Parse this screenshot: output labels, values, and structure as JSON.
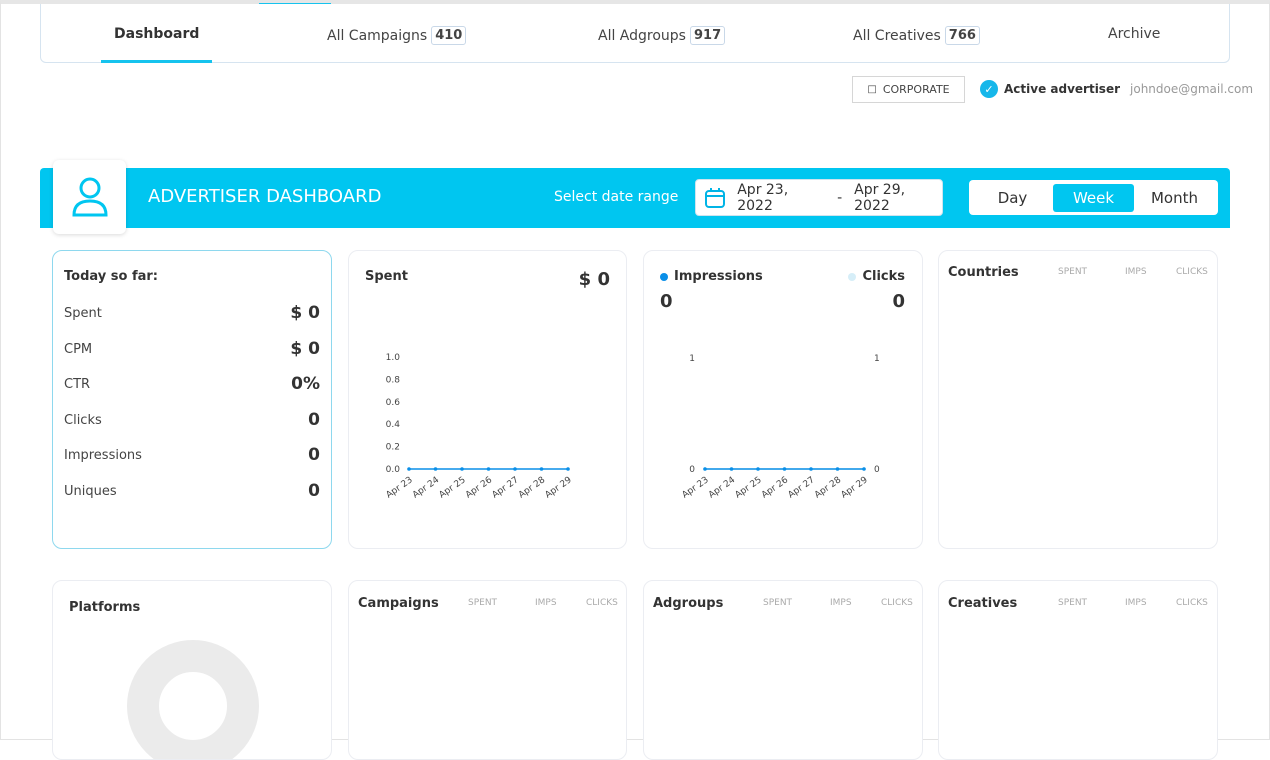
{
  "nav": {
    "tabs": [
      {
        "label": "Dashboard",
        "active": true
      },
      {
        "label": "All Campaigns",
        "count": "410"
      },
      {
        "label": "All Adgroups",
        "count": "917"
      },
      {
        "label": "All Creatives",
        "count": "766"
      },
      {
        "label": "Archive"
      }
    ]
  },
  "account": {
    "corporate_label": "CORPORATE",
    "status": "Active advertiser",
    "email": "johndoe@gmail.com"
  },
  "header": {
    "title": "ADVERTISER DASHBOARD",
    "date_label": "Select date range",
    "date_start": "Apr 23, 2022",
    "date_sep": "-",
    "date_end": "Apr 29, 2022",
    "periods": [
      "Day",
      "Week",
      "Month"
    ],
    "active_period": "Week",
    "accent": "#00c6f0"
  },
  "today": {
    "title": "Today so far:",
    "rows": [
      {
        "label": "Spent",
        "value": "$ 0"
      },
      {
        "label": "CPM",
        "value": "$ 0"
      },
      {
        "label": "CTR",
        "value": "0%"
      },
      {
        "label": "Clicks",
        "value": "0"
      },
      {
        "label": "Impressions",
        "value": "0"
      },
      {
        "label": "Uniques",
        "value": "0"
      }
    ]
  },
  "spent": {
    "title": "Spent",
    "total": "$ 0"
  },
  "impclicks": {
    "impressions_label": "Impressions",
    "impressions_value": "0",
    "clicks_label": "Clicks",
    "clicks_value": "0"
  },
  "tables": {
    "countries": "Countries",
    "platforms": "Platforms",
    "campaigns": "Campaigns",
    "adgroups": "Adgroups",
    "creatives": "Creatives",
    "cols": [
      "SPENT",
      "IMPS",
      "CLICKS"
    ]
  },
  "chart_data": [
    {
      "type": "line",
      "categories": [
        "Apr 23",
        "Apr 24",
        "Apr 25",
        "Apr 26",
        "Apr 27",
        "Apr 28",
        "Apr 29"
      ],
      "series": [
        {
          "values": [
            0,
            0,
            0,
            0,
            0,
            0,
            0
          ],
          "color": "#0a8fe8"
        }
      ],
      "ylim": [
        0,
        1
      ],
      "yticks": [
        "0.0",
        "0.2",
        "0.4",
        "0.6",
        "0.8",
        "1.0"
      ]
    },
    {
      "type": "line",
      "categories": [
        "Apr 23",
        "Apr 24",
        "Apr 25",
        "Apr 26",
        "Apr 27",
        "Apr 28",
        "Apr 29"
      ],
      "series": [
        {
          "name": "Impressions",
          "values": [
            0,
            0,
            0,
            0,
            0,
            0,
            0
          ],
          "color": "#0a8fe8"
        },
        {
          "name": "Clicks",
          "values": [
            0,
            0,
            0,
            0,
            0,
            0,
            0
          ],
          "color": "#d6eef8"
        }
      ],
      "ylim": [
        0,
        1
      ],
      "yticks_left": [
        "0",
        "1"
      ],
      "yticks_right": [
        "0",
        "1"
      ]
    }
  ]
}
